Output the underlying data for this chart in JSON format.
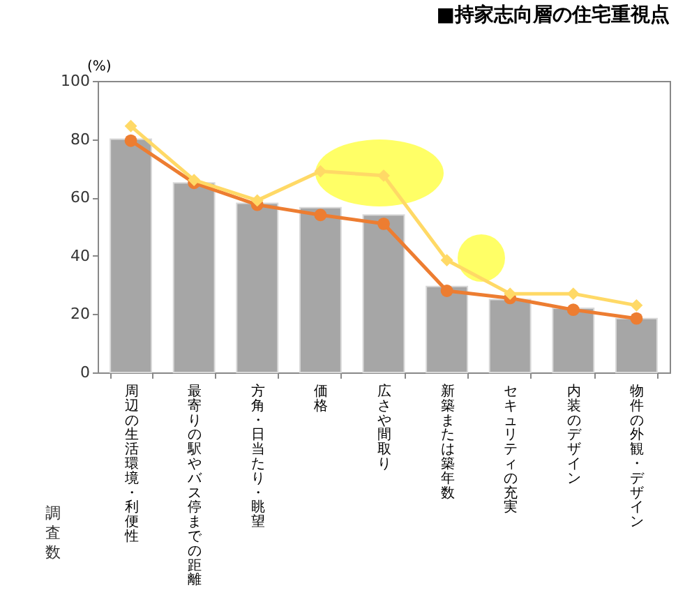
{
  "chart_data": {
    "type": "bar",
    "title": "■持家志向層の住宅重視点",
    "xlabel": "調査数",
    "ylabel": "(%)",
    "categories": [
      "周辺の生活環境・利便性",
      "最寄りの駅やバス停までの距離",
      "方角・日当たり・眺望",
      "価格",
      "広さや間取り",
      "新築または築年数",
      "セキュリティの充実",
      "内装のデザイン",
      "物件の外観・デザイン"
    ],
    "series": [
      {
        "color": "#a6a6a6",
        "values": [
          80,
          65,
          58,
          56.5,
          54,
          29.5,
          25,
          22,
          18.5
        ]
      },
      {
        "type": "line",
        "color": "#ed7d31",
        "marker": "circle",
        "values": [
          79.5,
          65,
          57.5,
          54,
          51,
          28,
          25.5,
          21.5,
          18.5
        ]
      },
      {
        "type": "line",
        "color": "#ffd966",
        "marker": "diamond",
        "values": [
          84.5,
          66,
          59,
          69,
          67.5,
          38.5,
          27,
          27,
          23
        ]
      }
    ],
    "ylim": [
      0,
      100
    ],
    "yticks": [
      0,
      20,
      40,
      60,
      80,
      100
    ],
    "grid": false
  }
}
